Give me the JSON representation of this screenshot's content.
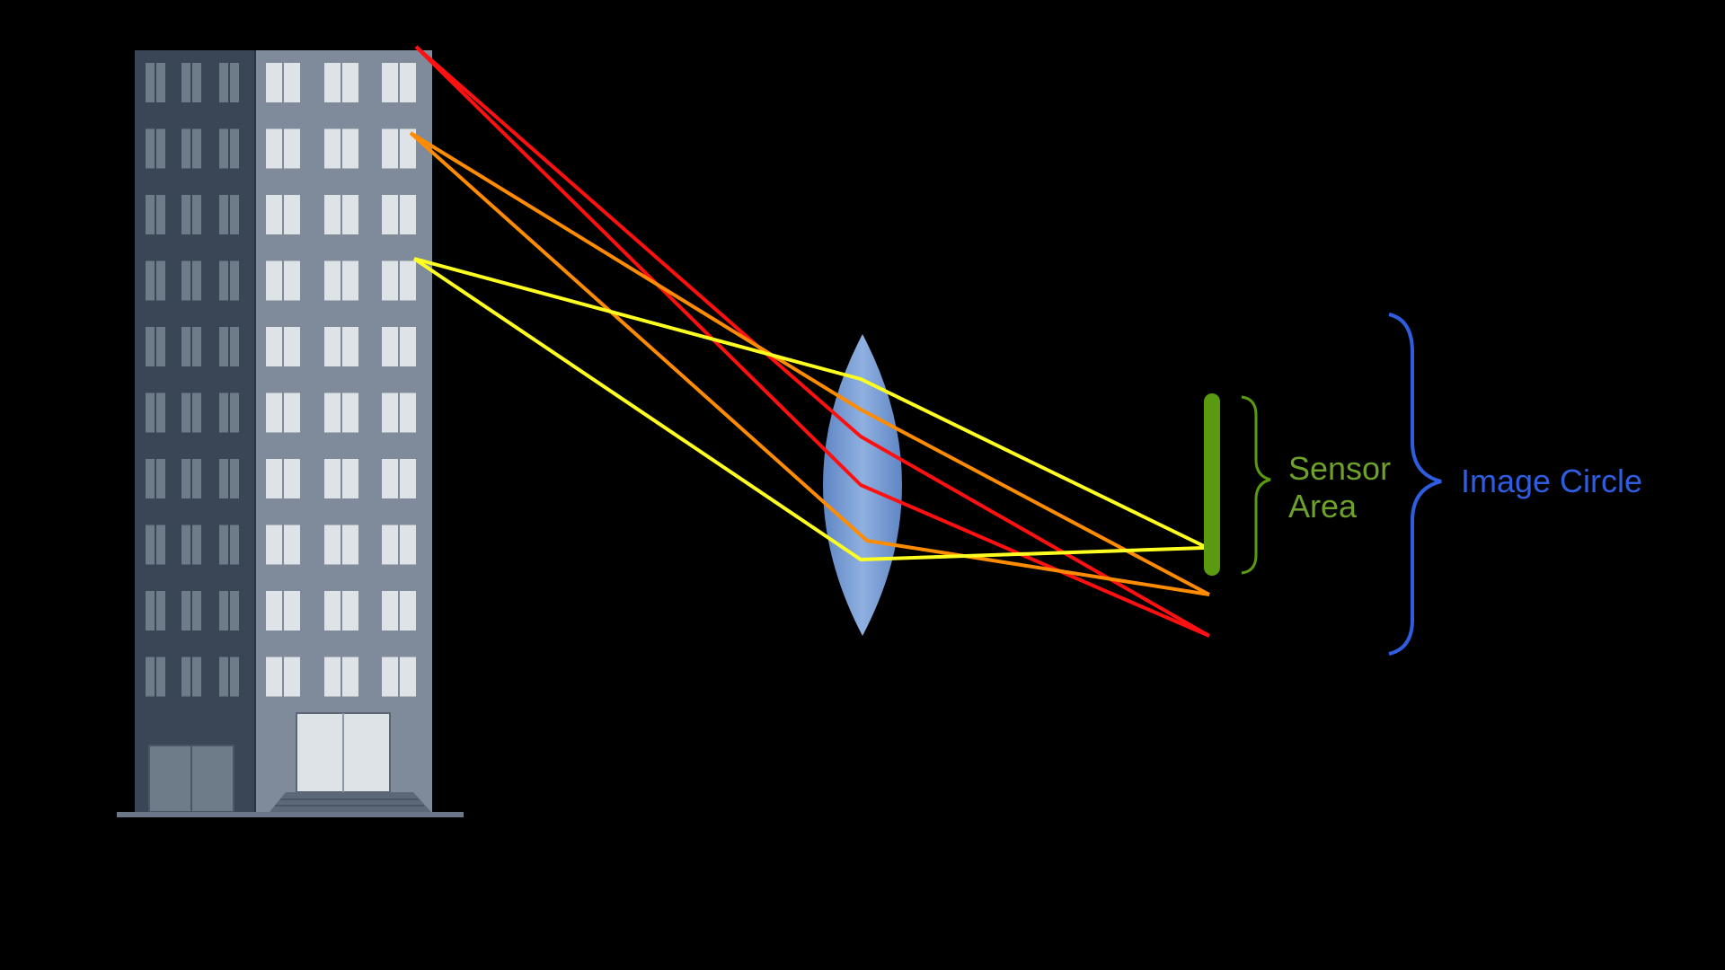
{
  "labels": {
    "sensor_line1": "Sensor",
    "sensor_line2": "Area",
    "image_circle": "Image Circle"
  },
  "colors": {
    "background": "#000000",
    "sensor_green": "#5a9a10",
    "sensor_label": "#6ea12a",
    "image_circle_blue": "#2f5de0",
    "ray_red": "#ff1010",
    "ray_orange": "#ff8c00",
    "ray_yellow": "#ffff20",
    "lens_fill": "#7b9fd4",
    "building_left": "#3a4656",
    "building_right": "#7f8b9a",
    "window_light": "#dde3e6",
    "window_dark": "#6e7c8a"
  },
  "rays": [
    {
      "name": "red",
      "color_key": "ray_red"
    },
    {
      "name": "orange",
      "color_key": "ray_orange"
    },
    {
      "name": "yellow",
      "color_key": "ray_yellow"
    }
  ]
}
